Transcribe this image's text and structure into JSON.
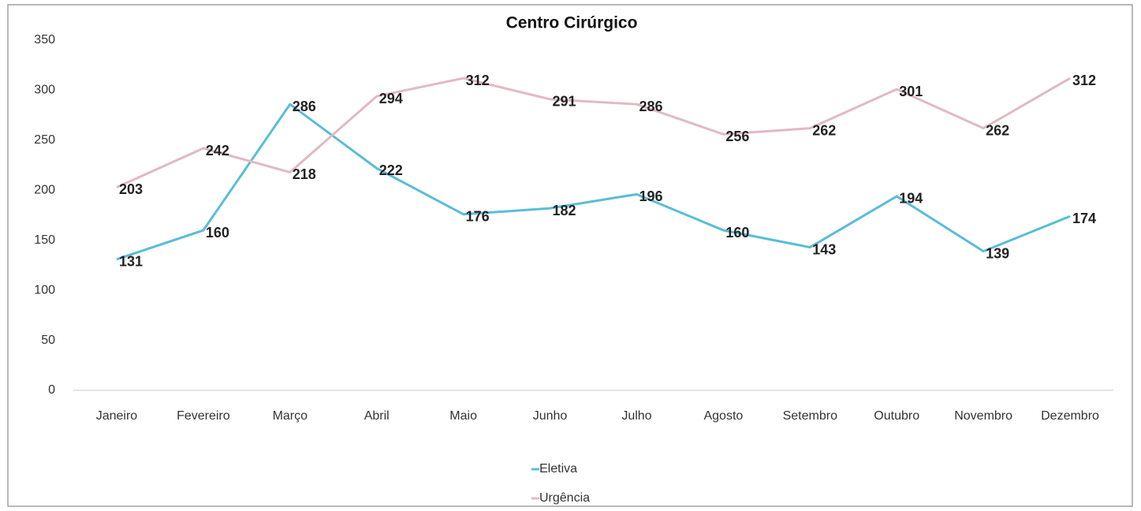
{
  "chart_data": {
    "type": "line",
    "title": "Centro Cirúrgico",
    "categories": [
      "Janeiro",
      "Fevereiro",
      "Março",
      "Abril",
      "Maio",
      "Junho",
      "Julho",
      "Agosto",
      "Setembro",
      "Outubro",
      "Novembro",
      "Dezembro"
    ],
    "series": [
      {
        "name": "Eletiva",
        "color": "#5bbcd8",
        "values": [
          131,
          160,
          286,
          222,
          176,
          182,
          196,
          160,
          143,
          194,
          139,
          174
        ]
      },
      {
        "name": "Urgência",
        "color": "#e2b9c2",
        "values": [
          203,
          242,
          218,
          294,
          312,
          291,
          286,
          256,
          262,
          301,
          262,
          312
        ]
      }
    ],
    "ylim": [
      0,
      350
    ],
    "yticks": [
      0,
      50,
      100,
      150,
      200,
      250,
      300,
      350
    ],
    "grid": false,
    "legend": "bottom"
  }
}
